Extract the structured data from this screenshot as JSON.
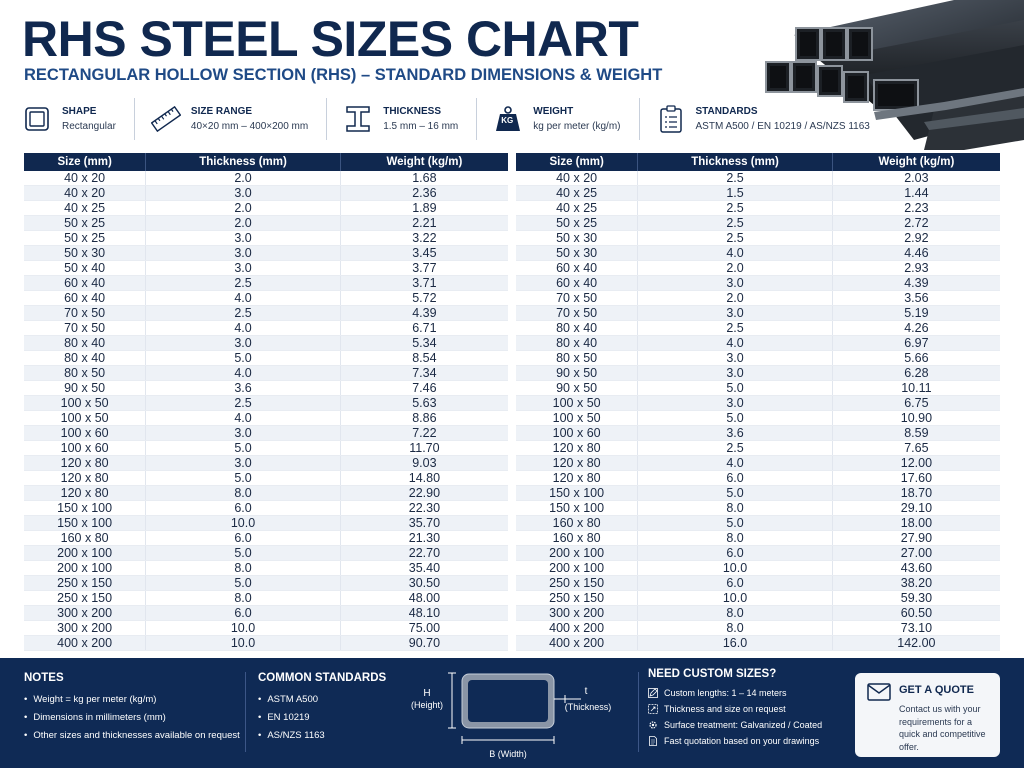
{
  "header": {
    "title": "RHS STEEL SIZES CHART",
    "subtitle": "RECTANGULAR HOLLOW SECTION (RHS) – STANDARD DIMENSIONS & WEIGHT"
  },
  "info": [
    {
      "label": "SHAPE",
      "value": "Rectangular",
      "icon": "rectangle-icon"
    },
    {
      "label": "SIZE RANGE",
      "value": "40×20 mm – 400×200 mm",
      "icon": "ruler-icon"
    },
    {
      "label": "THICKNESS",
      "value": "1.5 mm – 16 mm",
      "icon": "i-beam-icon"
    },
    {
      "label": "WEIGHT",
      "value": "kg per meter (kg/m)",
      "icon": "weight-icon",
      "icon_text": "KG"
    },
    {
      "label": "STANDARDS",
      "value": "ASTM A500 / EN 10219 / AS/NZS 1163",
      "icon": "clipboard-icon"
    }
  ],
  "table": {
    "headers": [
      "Size (mm)",
      "Thickness (mm)",
      "Weight (kg/m)"
    ],
    "left": [
      [
        "40 x 20",
        "2.0",
        "1.68"
      ],
      [
        "40 x 20",
        "3.0",
        "2.36"
      ],
      [
        "40 x 25",
        "2.0",
        "1.89"
      ],
      [
        "50 x 25",
        "2.0",
        "2.21"
      ],
      [
        "50 x 25",
        "3.0",
        "3.22"
      ],
      [
        "50 x 30",
        "3.0",
        "3.45"
      ],
      [
        "50 x 40",
        "3.0",
        "3.77"
      ],
      [
        "60 x 40",
        "2.5",
        "3.71"
      ],
      [
        "60 x 40",
        "4.0",
        "5.72"
      ],
      [
        "70 x 50",
        "2.5",
        "4.39"
      ],
      [
        "70 x 50",
        "4.0",
        "6.71"
      ],
      [
        "80 x 40",
        "3.0",
        "5.34"
      ],
      [
        "80 x 40",
        "5.0",
        "8.54"
      ],
      [
        "80 x 50",
        "4.0",
        "7.34"
      ],
      [
        "90 x 50",
        "3.6",
        "7.46"
      ],
      [
        "100 x 50",
        "2.5",
        "5.63"
      ],
      [
        "100 x 50",
        "4.0",
        "8.86"
      ],
      [
        "100 x 60",
        "3.0",
        "7.22"
      ],
      [
        "100 x 60",
        "5.0",
        "11.70"
      ],
      [
        "120 x 80",
        "3.0",
        "9.03"
      ],
      [
        "120 x 80",
        "5.0",
        "14.80"
      ],
      [
        "120 x 80",
        "8.0",
        "22.90"
      ],
      [
        "150 x 100",
        "6.0",
        "22.30"
      ],
      [
        "150 x 100",
        "10.0",
        "35.70"
      ],
      [
        "160 x 80",
        "6.0",
        "21.30"
      ],
      [
        "200 x 100",
        "5.0",
        "22.70"
      ],
      [
        "200 x 100",
        "8.0",
        "35.40"
      ],
      [
        "250 x 150",
        "5.0",
        "30.50"
      ],
      [
        "250 x 150",
        "8.0",
        "48.00"
      ],
      [
        "300 x 200",
        "6.0",
        "48.10"
      ],
      [
        "300 x 200",
        "10.0",
        "75.00"
      ],
      [
        "400 x 200",
        "10.0",
        "90.70"
      ]
    ],
    "right": [
      [
        "40 x 20",
        "2.5",
        "2.03"
      ],
      [
        "40 x 25",
        "1.5",
        "1.44"
      ],
      [
        "40 x 25",
        "2.5",
        "2.23"
      ],
      [
        "50 x 25",
        "2.5",
        "2.72"
      ],
      [
        "50 x 30",
        "2.5",
        "2.92"
      ],
      [
        "50 x 30",
        "4.0",
        "4.46"
      ],
      [
        "60 x 40",
        "2.0",
        "2.93"
      ],
      [
        "60 x 40",
        "3.0",
        "4.39"
      ],
      [
        "70 x 50",
        "2.0",
        "3.56"
      ],
      [
        "70 x 50",
        "3.0",
        "5.19"
      ],
      [
        "80 x 40",
        "2.5",
        "4.26"
      ],
      [
        "80 x 40",
        "4.0",
        "6.97"
      ],
      [
        "80 x 50",
        "3.0",
        "5.66"
      ],
      [
        "90 x 50",
        "3.0",
        "6.28"
      ],
      [
        "90 x 50",
        "5.0",
        "10.11"
      ],
      [
        "100 x 50",
        "3.0",
        "6.75"
      ],
      [
        "100 x 50",
        "5.0",
        "10.90"
      ],
      [
        "100 x 60",
        "3.6",
        "8.59"
      ],
      [
        "120 x 80",
        "2.5",
        "7.65"
      ],
      [
        "120 x 80",
        "4.0",
        "12.00"
      ],
      [
        "120 x 80",
        "6.0",
        "17.60"
      ],
      [
        "150 x 100",
        "5.0",
        "18.70"
      ],
      [
        "150 x 100",
        "8.0",
        "29.10"
      ],
      [
        "160 x 80",
        "5.0",
        "18.00"
      ],
      [
        "160 x 80",
        "8.0",
        "27.90"
      ],
      [
        "200 x 100",
        "6.0",
        "27.00"
      ],
      [
        "200 x 100",
        "10.0",
        "43.60"
      ],
      [
        "250 x 150",
        "6.0",
        "38.20"
      ],
      [
        "250 x 150",
        "10.0",
        "59.30"
      ],
      [
        "300 x 200",
        "8.0",
        "60.50"
      ],
      [
        "400 x 200",
        "8.0",
        "73.10"
      ],
      [
        "400 x 200",
        "16.0",
        "142.00"
      ]
    ]
  },
  "footer": {
    "notes": {
      "title": "NOTES",
      "items": [
        "Weight = kg per meter (kg/m)",
        "Dimensions in millimeters (mm)",
        "Other sizes and thicknesses available on request"
      ]
    },
    "standards": {
      "title": "COMMON STANDARDS",
      "items": [
        "ASTM A500",
        "EN 10219",
        "AS/NZS 1163"
      ]
    },
    "diagram": {
      "h_label": "H",
      "h_sub": "(Height)",
      "t_label": "t",
      "t_sub": "(Thickness)",
      "b_label": "B (Width)"
    },
    "custom": {
      "title": "NEED CUSTOM SIZES?",
      "items": [
        {
          "text": "Custom lengths: 1 – 14 meters",
          "icon": "pencil-icon"
        },
        {
          "text": "Thickness and size on request",
          "icon": "resize-icon"
        },
        {
          "text": "Surface treatment: Galvanized / Coated",
          "icon": "gear-icon"
        },
        {
          "text": "Fast quotation based on your drawings",
          "icon": "document-icon"
        }
      ]
    },
    "quote": {
      "title": "GET A QUOTE",
      "text": "Contact us with your requirements for a quick and competitive offer.",
      "icon": "envelope-icon"
    }
  }
}
